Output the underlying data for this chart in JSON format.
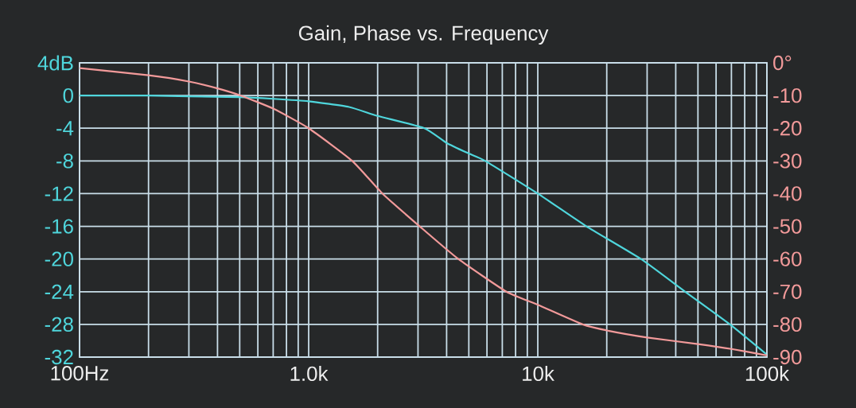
{
  "chart_data": {
    "type": "line",
    "title": "Gain, Phase vs. Frequency",
    "series": [
      {
        "color": "#4fd6dc",
        "x": [
          100,
          200,
          300,
          500,
          700,
          1000,
          1500,
          2000,
          3200,
          4000,
          5000,
          5900,
          10000,
          16300,
          28200,
          44000,
          69000,
          100000
        ],
        "values": [
          0,
          0,
          -0.1,
          -0.2,
          -0.4,
          -0.7,
          -1.4,
          -2.5,
          -4,
          -5.8,
          -7.1,
          -8,
          -12,
          -16,
          -20,
          -24,
          -28,
          -31.7
        ]
      },
      {
        "color": "#f29a9a",
        "axis": "y2",
        "x": [
          100,
          200,
          300,
          400,
          500,
          700,
          1000,
          1550,
          2100,
          3050,
          4500,
          7300,
          10000,
          15700,
          20500,
          30000,
          50000,
          70000,
          100000
        ],
        "values": [
          -1.6,
          -3.8,
          -5.7,
          -7.8,
          -9.9,
          -14,
          -20,
          -30,
          -40,
          -50,
          -60,
          -70,
          -74,
          -80,
          -82,
          -84,
          -86,
          -87.5,
          -89.5
        ]
      }
    ],
    "log": "x",
    "xlim": [
      100,
      100000
    ],
    "xticks": [
      {
        "value": 100,
        "label": "100Hz"
      },
      {
        "value": 1000,
        "label": "1.0k"
      },
      {
        "value": 10000,
        "label": "10k"
      },
      {
        "value": 100000,
        "label": "100k"
      }
    ],
    "ylim": [
      -32,
      4
    ],
    "yticks": [
      {
        "value": 4,
        "label": "4dB"
      },
      0,
      -4,
      -8,
      -12,
      -16,
      -20,
      -24,
      -28,
      -32
    ],
    "y2lim": [
      -90,
      0
    ],
    "y2ticks": [
      {
        "value": 0,
        "label": "0°"
      },
      -10,
      -20,
      -30,
      -40,
      -50,
      -60,
      -70,
      -80,
      -90
    ],
    "grid": true
  }
}
